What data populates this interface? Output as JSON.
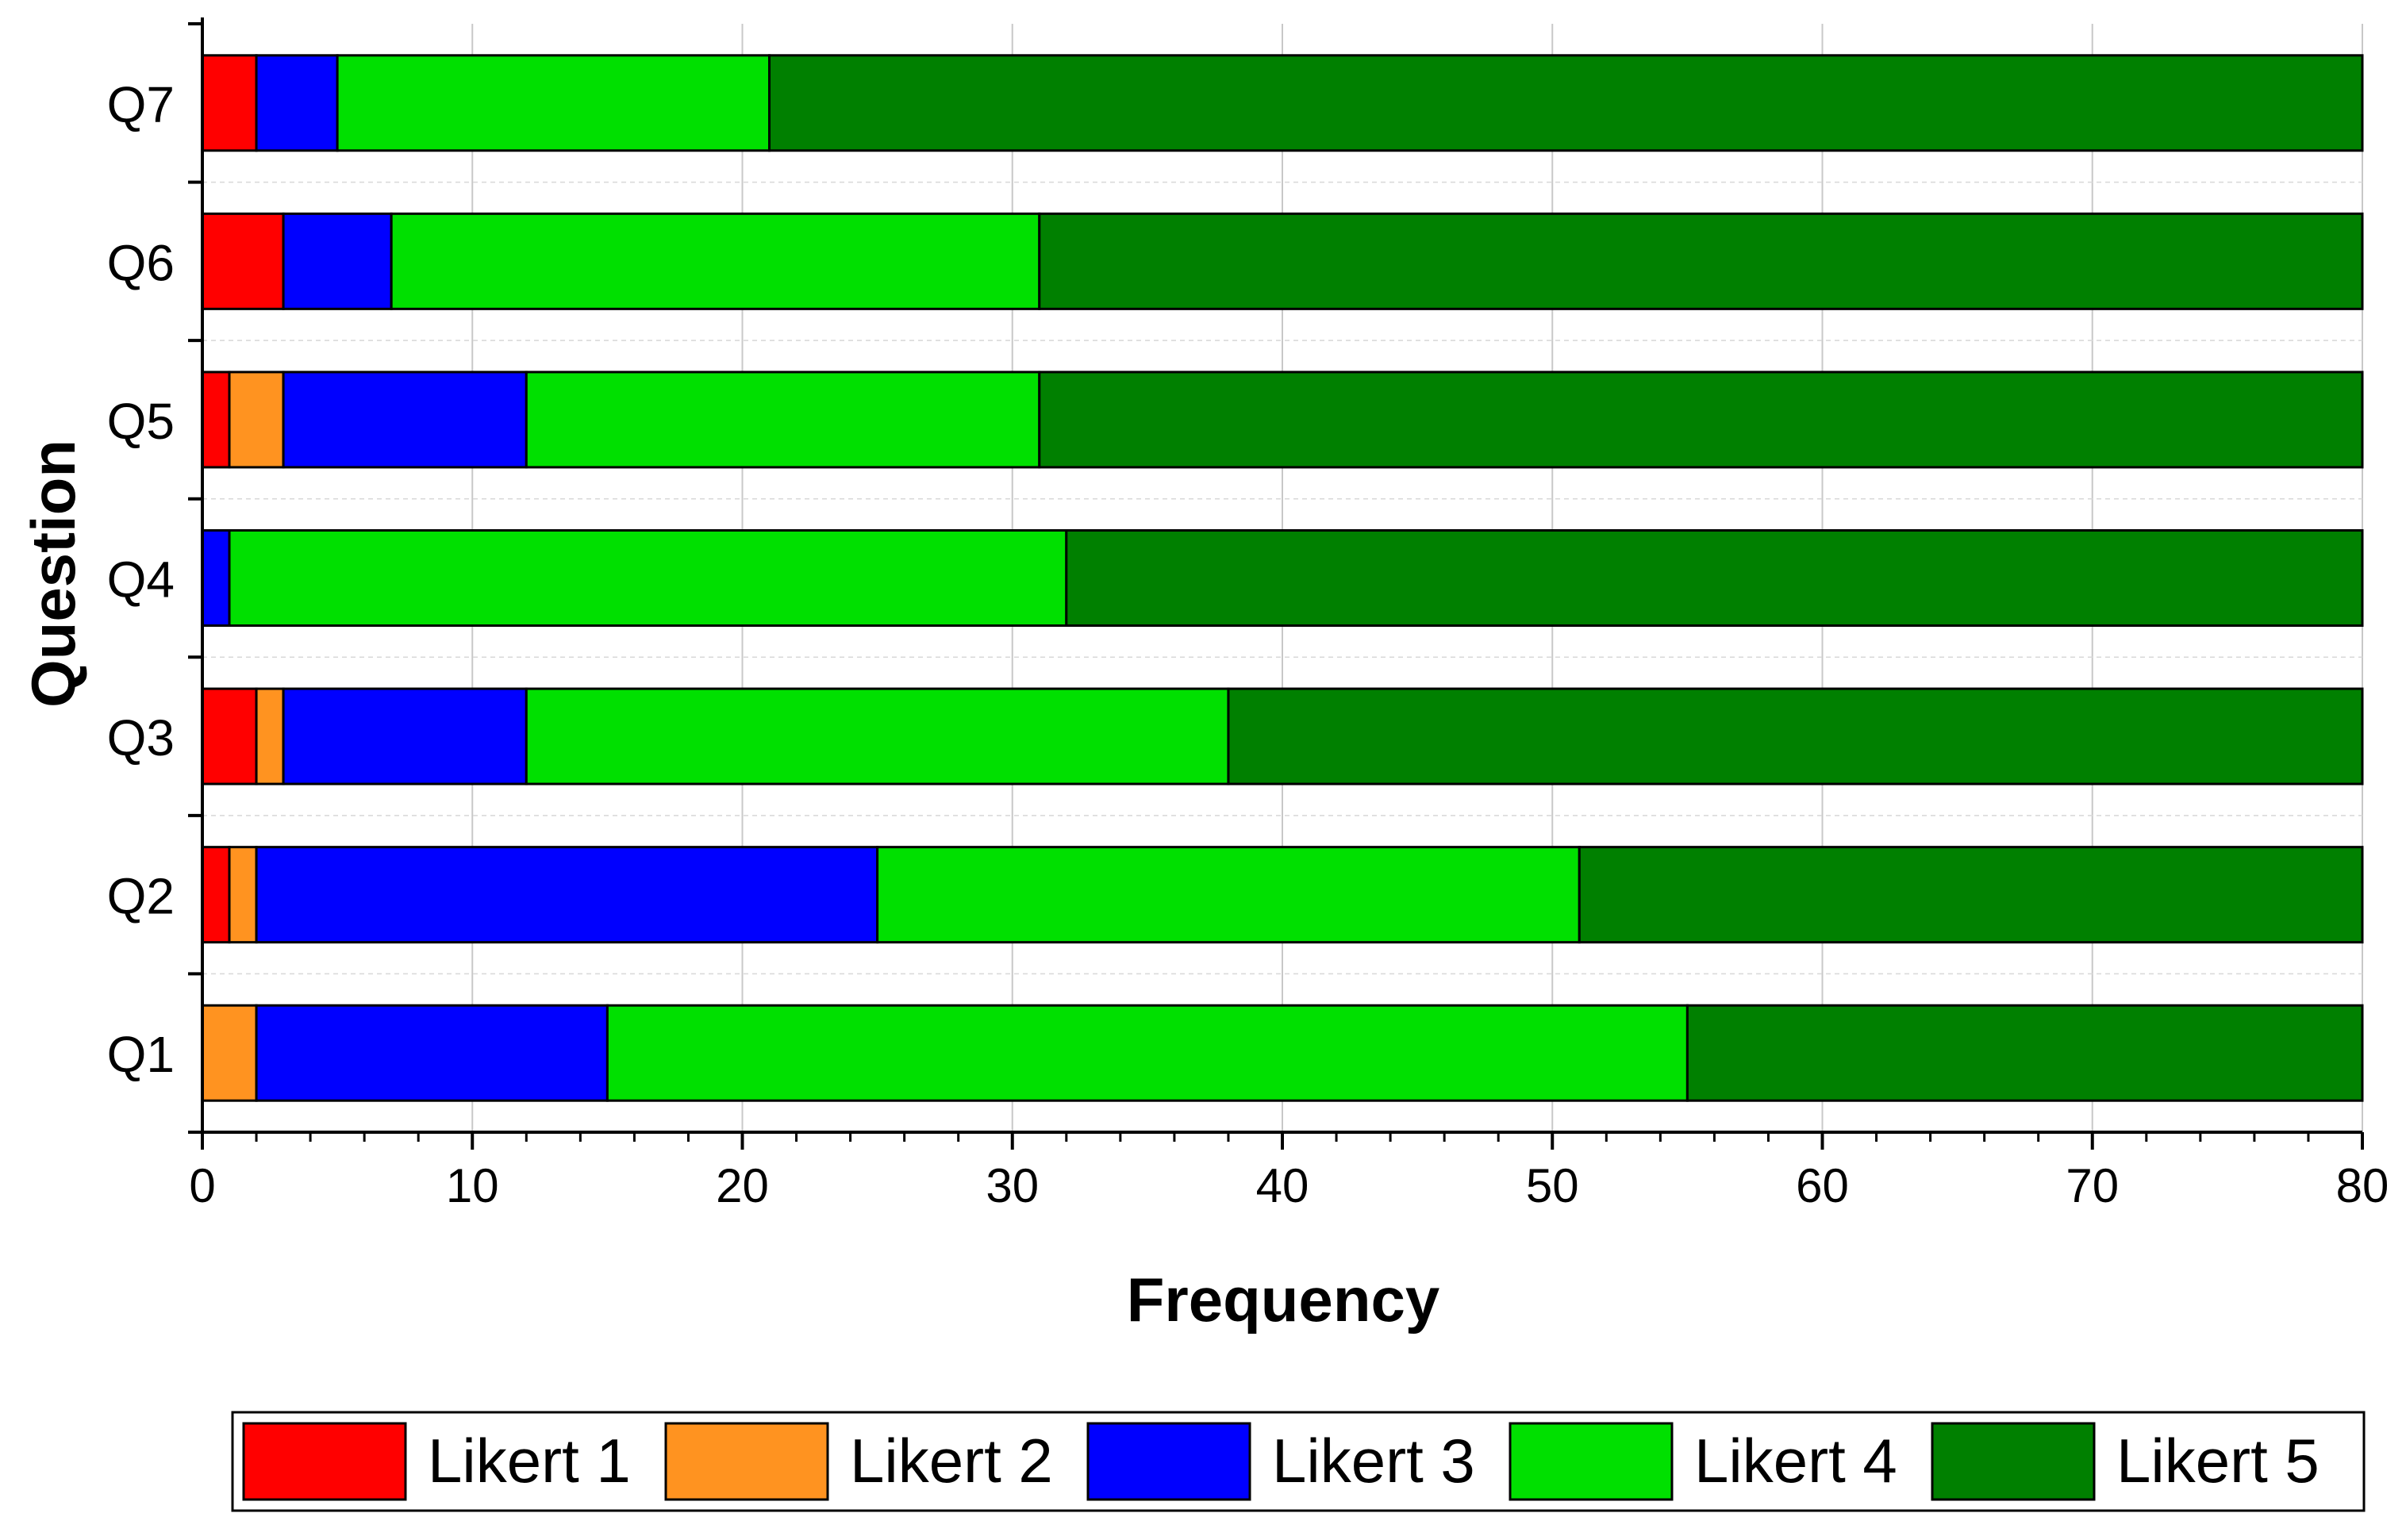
{
  "chart_data": {
    "type": "bar",
    "orientation": "horizontal",
    "stacked": true,
    "xlabel": "Frequency",
    "ylabel": "Question",
    "xlim": [
      0,
      80
    ],
    "x_ticks": [
      0,
      10,
      20,
      30,
      40,
      50,
      60,
      70,
      80
    ],
    "grid": true,
    "legend_position": "bottom",
    "categories": [
      "Q1",
      "Q2",
      "Q3",
      "Q4",
      "Q5",
      "Q6",
      "Q7"
    ],
    "series": [
      {
        "name": "Likert 1",
        "color": "#ff0000",
        "values": [
          0,
          1,
          2,
          0,
          1,
          3,
          2
        ]
      },
      {
        "name": "Likert 2",
        "color": "#ff9320",
        "values": [
          2,
          1,
          1,
          0,
          2,
          0,
          0
        ]
      },
      {
        "name": "Likert 3",
        "color": "#0000ff",
        "values": [
          13,
          23,
          9,
          1,
          9,
          4,
          3
        ]
      },
      {
        "name": "Likert 4",
        "color": "#00e000",
        "values": [
          40,
          26,
          26,
          31,
          19,
          24,
          16
        ]
      },
      {
        "name": "Likert 5",
        "color": "#008000",
        "values": [
          25,
          29,
          42,
          48,
          49,
          49,
          59
        ]
      }
    ]
  }
}
